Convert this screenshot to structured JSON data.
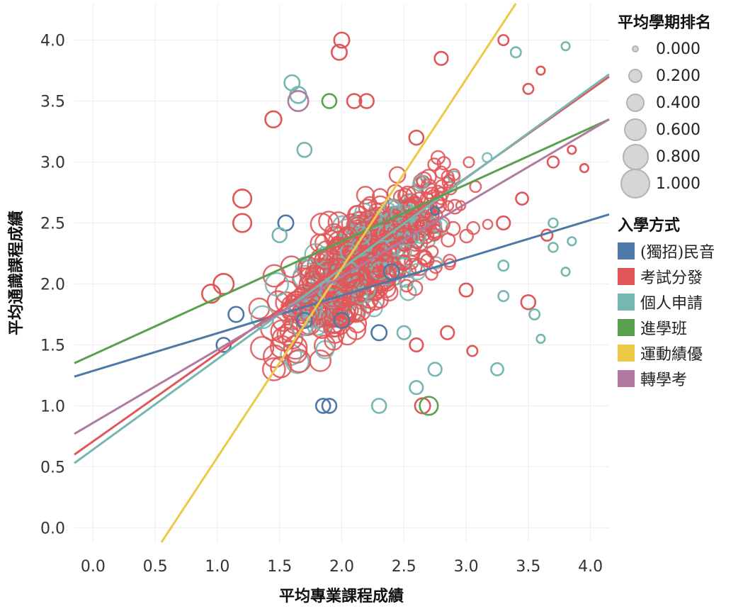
{
  "chart_data": {
    "type": "scatter",
    "title": "",
    "xlabel": "平均專業課程成績",
    "ylabel": "平均通識課程成績",
    "xlim": [
      -0.15,
      4.15
    ],
    "ylim": [
      -0.12,
      4.3
    ],
    "x_ticks": [
      "0.0",
      "0.5",
      "1.0",
      "1.5",
      "2.0",
      "2.5",
      "3.0",
      "3.5",
      "4.0"
    ],
    "y_ticks": [
      "0.0",
      "0.5",
      "1.0",
      "1.5",
      "2.0",
      "2.5",
      "3.0",
      "3.5",
      "4.0"
    ],
    "grid": true,
    "size_legend": {
      "title": "平均學期排名",
      "values": [
        "0.000",
        "0.200",
        "0.400",
        "0.600",
        "0.800",
        "1.000"
      ]
    },
    "color_legend": {
      "title": "入學方式",
      "placement": "right"
    },
    "series": [
      {
        "name": "(獨招)民音",
        "color": "#4e79a7",
        "trend": {
          "x0": -0.15,
          "y0": 1.24,
          "x1": 4.15,
          "y1": 2.57
        },
        "points": [
          [
            1.55,
            2.5,
            0.55
          ],
          [
            1.15,
            1.75,
            0.55
          ],
          [
            1.7,
            1.7,
            0.55
          ],
          [
            2.0,
            1.7,
            0.55
          ],
          [
            2.4,
            2.1,
            0.55
          ],
          [
            2.3,
            1.6,
            0.55
          ],
          [
            1.9,
            1.0,
            0.5
          ],
          [
            1.85,
            1.0,
            0.5
          ],
          [
            1.05,
            1.5,
            0.5
          ],
          [
            2.75,
            2.6,
            0.2
          ]
        ]
      },
      {
        "name": "考試分發",
        "color": "#e15759",
        "trend": {
          "x0": -0.15,
          "y0": 0.6,
          "x1": 4.15,
          "y1": 3.7
        },
        "points": [
          [
            2.0,
            4.0,
            0.55
          ],
          [
            1.98,
            3.9,
            0.55
          ],
          [
            1.45,
            3.35,
            0.6
          ],
          [
            1.2,
            2.7,
            0.7
          ],
          [
            1.2,
            2.5,
            0.7
          ],
          [
            0.95,
            1.92,
            0.7
          ],
          [
            1.05,
            2.0,
            0.8
          ],
          [
            2.65,
            1.0,
            0.55
          ],
          [
            3.5,
            1.85,
            0.5
          ],
          [
            3.3,
            2.5,
            0.45
          ],
          [
            3.0,
            1.95,
            0.45
          ],
          [
            3.45,
            2.7,
            0.4
          ],
          [
            3.7,
            3.0,
            0.35
          ],
          [
            3.65,
            2.4,
            0.35
          ],
          [
            3.3,
            4.0,
            0.3
          ],
          [
            3.5,
            3.6,
            0.3
          ],
          [
            3.95,
            2.95,
            0.2
          ],
          [
            3.85,
            3.1,
            0.2
          ],
          [
            3.6,
            3.75,
            0.2
          ],
          [
            2.85,
            1.6,
            0.45
          ],
          [
            2.6,
            1.5,
            0.45
          ],
          [
            3.05,
            1.45,
            0.3
          ],
          [
            2.6,
            3.2,
            0.5
          ],
          [
            2.2,
            3.5,
            0.5
          ],
          [
            2.1,
            3.5,
            0.5
          ],
          [
            2.8,
            3.85,
            0.45
          ]
        ]
      },
      {
        "name": "個人申請",
        "color": "#76b7b2",
        "trend": {
          "x0": -0.15,
          "y0": 0.53,
          "x1": 4.15,
          "y1": 3.72
        },
        "points": [
          [
            1.6,
            3.65,
            0.55
          ],
          [
            1.65,
            3.55,
            0.6
          ],
          [
            3.25,
            1.3,
            0.4
          ],
          [
            2.75,
            1.3,
            0.45
          ],
          [
            2.6,
            1.15,
            0.45
          ],
          [
            2.3,
            1.0,
            0.5
          ],
          [
            3.6,
            1.55,
            0.2
          ],
          [
            3.55,
            1.75,
            0.3
          ],
          [
            3.3,
            2.15,
            0.3
          ],
          [
            3.7,
            2.3,
            0.25
          ],
          [
            3.8,
            2.1,
            0.2
          ],
          [
            3.8,
            3.95,
            0.2
          ],
          [
            3.7,
            2.5,
            0.25
          ],
          [
            3.85,
            2.35,
            0.2
          ],
          [
            2.5,
            1.6,
            0.45
          ],
          [
            1.5,
            2.4,
            0.5
          ],
          [
            1.7,
            3.1,
            0.5
          ],
          [
            3.4,
            3.9,
            0.3
          ],
          [
            3.3,
            1.9,
            0.3
          ]
        ]
      },
      {
        "name": "進學班",
        "color": "#59a14f",
        "trend": {
          "x0": -0.15,
          "y0": 1.35,
          "x1": 4.15,
          "y1": 3.35
        },
        "points": [
          [
            1.9,
            3.5,
            0.5
          ],
          [
            2.7,
            1.0,
            0.7
          ]
        ]
      },
      {
        "name": "運動績優",
        "color": "#edc948",
        "trend": {
          "x0": 0.55,
          "y0": -0.12,
          "x1": 3.4,
          "y1": 4.3
        },
        "points": []
      },
      {
        "name": "轉學考",
        "color": "#b07aa1",
        "trend": {
          "x0": -0.15,
          "y0": 0.77,
          "x1": 4.15,
          "y1": 3.35
        },
        "points": [
          [
            1.65,
            3.5,
            0.8
          ]
        ]
      }
    ]
  }
}
